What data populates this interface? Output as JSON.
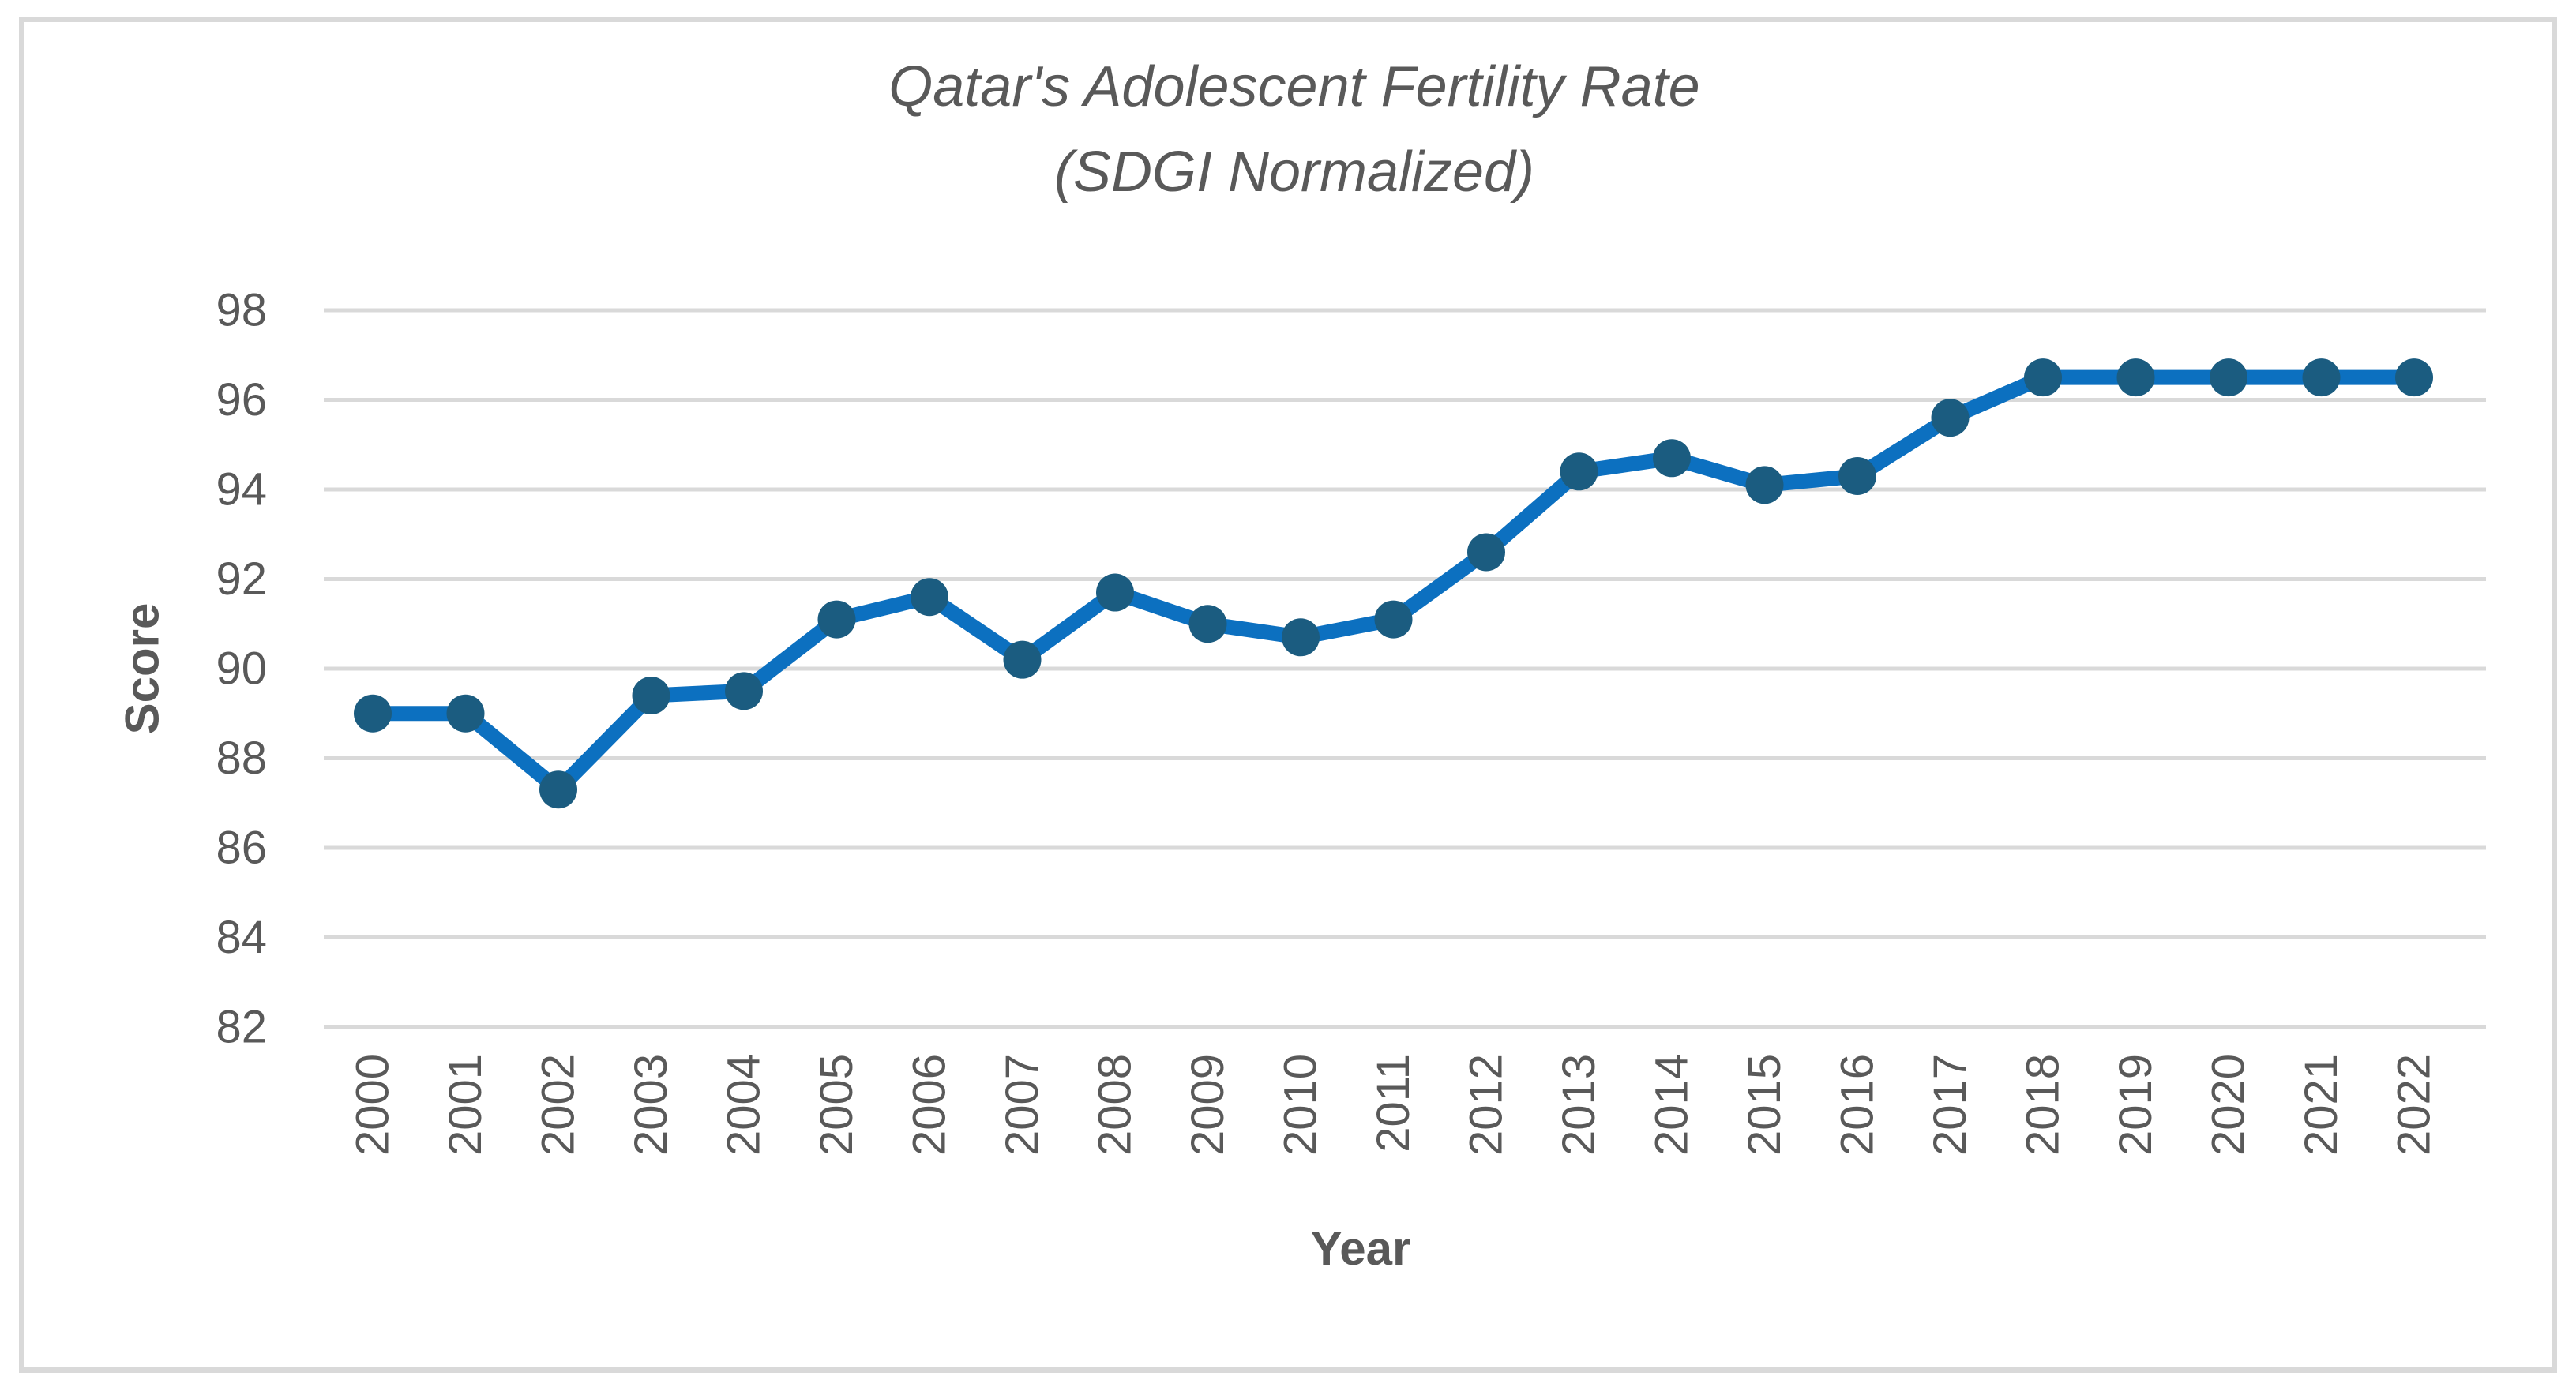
{
  "chart_data": {
    "type": "line",
    "title": "Qatar's Adolescent Fertility Rate",
    "subtitle": "(SDGI Normalized)",
    "xlabel": "Year",
    "ylabel": "Score",
    "categories": [
      "2000",
      "2001",
      "2002",
      "2003",
      "2004",
      "2005",
      "2006",
      "2007",
      "2008",
      "2009",
      "2010",
      "2011",
      "2012",
      "2013",
      "2014",
      "2015",
      "2016",
      "2017",
      "2018",
      "2019",
      "2020",
      "2021",
      "2022"
    ],
    "series": [
      {
        "name": "Qatar Adolescent Fertility Rate (SDGI Normalized)",
        "values": [
          89.0,
          89.0,
          87.3,
          89.4,
          89.5,
          91.1,
          91.6,
          90.2,
          91.7,
          91.0,
          90.7,
          91.1,
          92.6,
          94.4,
          94.7,
          94.1,
          94.3,
          95.6,
          96.5,
          96.5,
          96.5,
          96.5,
          96.5
        ]
      }
    ],
    "ylim": [
      82,
      98
    ],
    "yticks": [
      82,
      84,
      86,
      88,
      90,
      92,
      94,
      96,
      98
    ],
    "grid": "horizontal-only",
    "legend_position": "none",
    "colors": {
      "line": "#0C70C0",
      "marker": "#1B5C80",
      "gridline": "#D9D9D9",
      "text": "#595959",
      "frame_border": "#D9D9D9",
      "background": "#FFFFFF"
    }
  }
}
